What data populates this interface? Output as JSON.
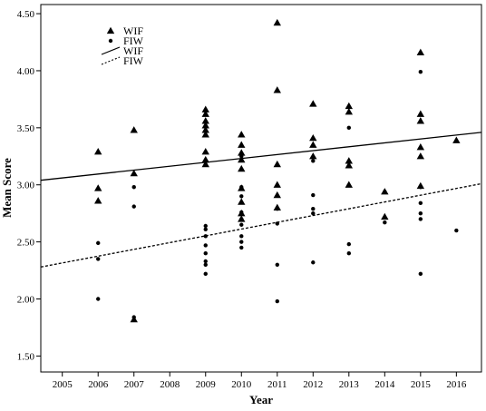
{
  "chart_data": {
    "type": "scatter",
    "title": "",
    "xlabel": "Year",
    "ylabel": "Mean Score",
    "xlim": [
      2004.4,
      2016.7
    ],
    "ylim": [
      1.36,
      4.58
    ],
    "x_ticks": [
      "2005",
      "2006",
      "2007",
      "2008",
      "2009",
      "2010",
      "2011",
      "2012",
      "2013",
      "2014",
      "2015",
      "2016"
    ],
    "y_ticks": [
      "1.50",
      "2.00",
      "2.50",
      "3.00",
      "3.50",
      "4.00",
      "4.50"
    ],
    "grid": false,
    "legend_position": "top-left",
    "legend": [
      {
        "label": "WIF",
        "kind": "marker",
        "marker": "triangle"
      },
      {
        "label": "FIW",
        "kind": "marker",
        "marker": "circle"
      },
      {
        "label": "WIF",
        "kind": "line",
        "style": "solid"
      },
      {
        "label": "FIW",
        "kind": "line",
        "style": "dashed"
      }
    ],
    "series": [
      {
        "name": "WIF",
        "marker": "triangle",
        "points": [
          [
            2006,
            3.29
          ],
          [
            2006,
            2.97
          ],
          [
            2006,
            2.86
          ],
          [
            2007,
            3.48
          ],
          [
            2007,
            3.1
          ],
          [
            2007,
            1.82
          ],
          [
            2009,
            3.66
          ],
          [
            2009,
            3.62
          ],
          [
            2009,
            3.56
          ],
          [
            2009,
            3.52
          ],
          [
            2009,
            3.48
          ],
          [
            2009,
            3.44
          ],
          [
            2009,
            3.29
          ],
          [
            2009,
            3.22
          ],
          [
            2009,
            3.18
          ],
          [
            2010,
            3.44
          ],
          [
            2010,
            3.35
          ],
          [
            2010,
            3.28
          ],
          [
            2010,
            3.22
          ],
          [
            2010,
            3.14
          ],
          [
            2010,
            2.97
          ],
          [
            2010,
            2.85
          ],
          [
            2010,
            2.75
          ],
          [
            2010,
            2.7
          ],
          [
            2011,
            4.42
          ],
          [
            2011,
            3.83
          ],
          [
            2011,
            3.18
          ],
          [
            2011,
            3.0
          ],
          [
            2011,
            2.91
          ],
          [
            2011,
            2.8
          ],
          [
            2012,
            3.71
          ],
          [
            2012,
            3.41
          ],
          [
            2012,
            3.35
          ],
          [
            2012,
            3.25
          ],
          [
            2013,
            3.69
          ],
          [
            2013,
            3.64
          ],
          [
            2013,
            3.21
          ],
          [
            2013,
            3.17
          ],
          [
            2013,
            3.0
          ],
          [
            2014,
            2.94
          ],
          [
            2014,
            2.72
          ],
          [
            2015,
            4.16
          ],
          [
            2015,
            3.62
          ],
          [
            2015,
            3.56
          ],
          [
            2015,
            3.33
          ],
          [
            2015,
            3.25
          ],
          [
            2015,
            2.99
          ],
          [
            2016,
            3.39
          ]
        ]
      },
      {
        "name": "FIW",
        "marker": "circle",
        "points": [
          [
            2006,
            2.49
          ],
          [
            2006,
            2.35
          ],
          [
            2006,
            2.0
          ],
          [
            2007,
            2.98
          ],
          [
            2007,
            2.81
          ],
          [
            2007,
            1.84
          ],
          [
            2009,
            2.64
          ],
          [
            2009,
            2.61
          ],
          [
            2009,
            2.55
          ],
          [
            2009,
            2.47
          ],
          [
            2009,
            2.4
          ],
          [
            2009,
            2.33
          ],
          [
            2009,
            2.3
          ],
          [
            2009,
            2.22
          ],
          [
            2010,
            3.25
          ],
          [
            2010,
            2.98
          ],
          [
            2010,
            2.9
          ],
          [
            2010,
            2.76
          ],
          [
            2010,
            2.7
          ],
          [
            2010,
            2.65
          ],
          [
            2010,
            2.55
          ],
          [
            2010,
            2.5
          ],
          [
            2010,
            2.45
          ],
          [
            2011,
            2.79
          ],
          [
            2011,
            2.66
          ],
          [
            2011,
            2.3
          ],
          [
            2011,
            1.98
          ],
          [
            2012,
            3.21
          ],
          [
            2012,
            2.91
          ],
          [
            2012,
            2.79
          ],
          [
            2012,
            2.75
          ],
          [
            2012,
            2.32
          ],
          [
            2013,
            3.5
          ],
          [
            2013,
            2.48
          ],
          [
            2013,
            2.4
          ],
          [
            2014,
            2.94
          ],
          [
            2014,
            2.67
          ],
          [
            2015,
            3.99
          ],
          [
            2015,
            2.98
          ],
          [
            2015,
            2.84
          ],
          [
            2015,
            2.75
          ],
          [
            2015,
            2.7
          ],
          [
            2015,
            2.22
          ],
          [
            2016,
            2.6
          ]
        ]
      }
    ],
    "fit_lines": [
      {
        "name": "WIF",
        "style": "solid",
        "from": [
          2004.4,
          3.04
        ],
        "to": [
          2016.7,
          3.46
        ]
      },
      {
        "name": "FIW",
        "style": "dashed",
        "from": [
          2004.4,
          2.28
        ],
        "to": [
          2016.7,
          3.01
        ]
      }
    ]
  }
}
